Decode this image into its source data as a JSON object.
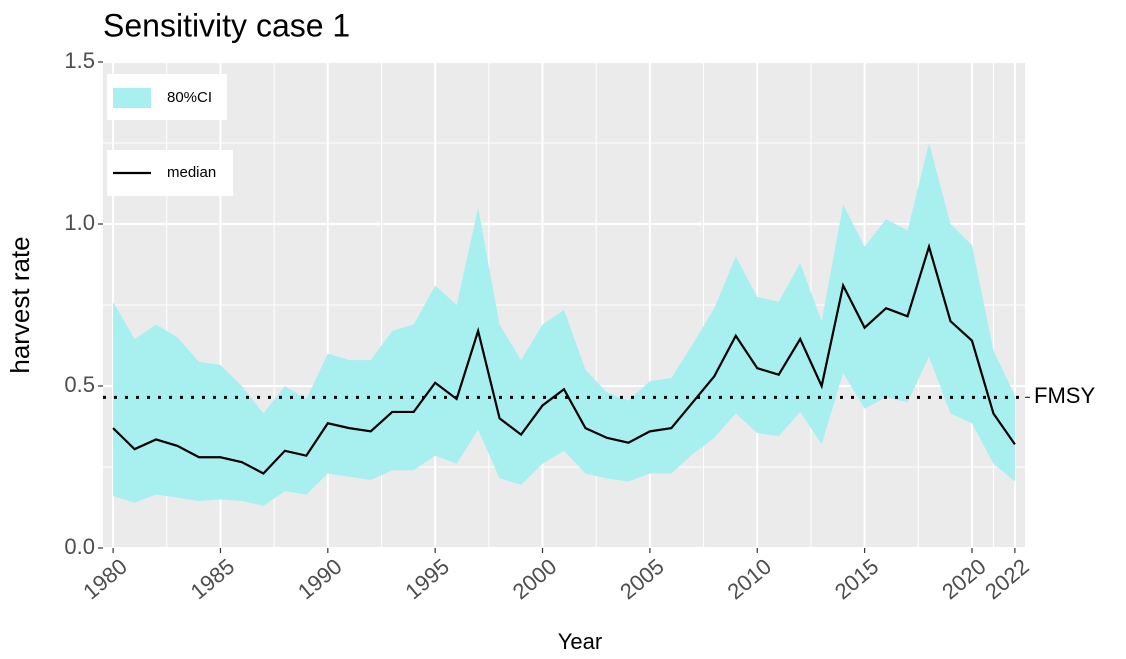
{
  "chart_data": {
    "type": "line",
    "title": "Sensitivity case 1",
    "x_label": "Year",
    "y_label": "harvest rate",
    "x": [
      1980,
      1981,
      1982,
      1983,
      1984,
      1985,
      1986,
      1987,
      1988,
      1989,
      1990,
      1991,
      1992,
      1993,
      1994,
      1995,
      1996,
      1997,
      1998,
      1999,
      2000,
      2001,
      2002,
      2003,
      2004,
      2005,
      2006,
      2007,
      2008,
      2009,
      2010,
      2011,
      2012,
      2013,
      2014,
      2015,
      2016,
      2017,
      2018,
      2019,
      2020,
      2021,
      2022
    ],
    "ribbon": {
      "name": "80%CI",
      "color": "#a8f0f0",
      "upper": [
        0.76,
        0.645,
        0.69,
        0.65,
        0.575,
        0.565,
        0.5,
        0.415,
        0.5,
        0.46,
        0.6,
        0.58,
        0.58,
        0.67,
        0.69,
        0.81,
        0.75,
        1.05,
        0.69,
        0.58,
        0.69,
        0.735,
        0.55,
        0.48,
        0.455,
        0.515,
        0.525,
        0.63,
        0.74,
        0.9,
        0.775,
        0.76,
        0.88,
        0.7,
        1.06,
        0.93,
        1.015,
        0.98,
        1.25,
        1.0,
        0.935,
        0.61,
        0.47
      ],
      "lower": [
        0.16,
        0.14,
        0.165,
        0.155,
        0.145,
        0.15,
        0.145,
        0.13,
        0.175,
        0.165,
        0.23,
        0.22,
        0.21,
        0.24,
        0.24,
        0.285,
        0.26,
        0.365,
        0.215,
        0.195,
        0.26,
        0.3,
        0.23,
        0.215,
        0.205,
        0.23,
        0.23,
        0.29,
        0.34,
        0.415,
        0.355,
        0.345,
        0.42,
        0.32,
        0.54,
        0.43,
        0.465,
        0.45,
        0.59,
        0.415,
        0.385,
        0.26,
        0.205
      ]
    },
    "series": [
      {
        "name": "median",
        "color": "#000000",
        "values": [
          0.37,
          0.305,
          0.335,
          0.315,
          0.28,
          0.28,
          0.265,
          0.23,
          0.3,
          0.285,
          0.385,
          0.37,
          0.36,
          0.42,
          0.42,
          0.51,
          0.46,
          0.67,
          0.4,
          0.35,
          0.44,
          0.49,
          0.37,
          0.34,
          0.325,
          0.36,
          0.37,
          0.45,
          0.53,
          0.655,
          0.555,
          0.535,
          0.645,
          0.5,
          0.81,
          0.68,
          0.74,
          0.715,
          0.93,
          0.7,
          0.64,
          0.415,
          0.32
        ]
      }
    ],
    "reference_line": {
      "label": "FMSY",
      "value": 0.465
    },
    "xlim": [
      1979.53,
      2022.47
    ],
    "xticks": [
      1980,
      1985,
      1990,
      1995,
      2000,
      2005,
      2010,
      2015,
      2020,
      2022
    ],
    "ylim": [
      0,
      1.5
    ],
    "yticks": [
      {
        "value": 0,
        "label": "0.0"
      },
      0.5,
      {
        "value": 1,
        "label": "1.0"
      },
      1.5
    ],
    "grid": true,
    "legend": "top-left"
  }
}
